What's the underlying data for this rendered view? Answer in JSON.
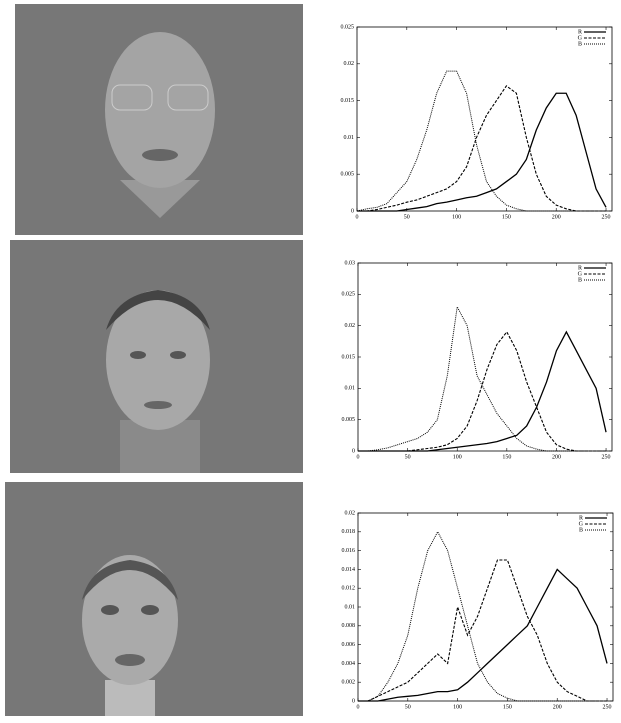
{
  "chart_data": [
    {
      "type": "line",
      "x": [
        0,
        10,
        20,
        30,
        40,
        50,
        60,
        70,
        80,
        90,
        100,
        110,
        120,
        130,
        140,
        150,
        160,
        170,
        180,
        190,
        200,
        210,
        220,
        230,
        240,
        250
      ],
      "xlim": [
        0,
        256
      ],
      "xticks": [
        0,
        50,
        100,
        150,
        200,
        250
      ],
      "ylim": [
        0,
        0.025
      ],
      "yticks": [
        0,
        0.005,
        0.01,
        0.015,
        0.02,
        0.025
      ],
      "legend": "top-right",
      "series": [
        {
          "name": "R",
          "color": "#000000",
          "dash": "solid",
          "values": [
            0,
            0,
            0,
            0,
            0,
            0.0002,
            0.0004,
            0.0006,
            0.001,
            0.0012,
            0.0015,
            0.0018,
            0.002,
            0.0025,
            0.003,
            0.004,
            0.005,
            0.007,
            0.011,
            0.014,
            0.016,
            0.016,
            0.013,
            0.008,
            0.003,
            0.0005
          ]
        },
        {
          "name": "G",
          "color": "#000000",
          "dash": "dashed",
          "values": [
            0,
            0,
            0.0002,
            0.0005,
            0.0008,
            0.0012,
            0.0015,
            0.002,
            0.0025,
            0.003,
            0.004,
            0.006,
            0.01,
            0.013,
            0.015,
            0.017,
            0.016,
            0.01,
            0.005,
            0.002,
            0.0008,
            0.0003,
            0,
            0,
            0,
            0
          ]
        },
        {
          "name": "B",
          "color": "#000000",
          "dash": "dotted",
          "values": [
            0,
            0.0003,
            0.0005,
            0.001,
            0.0025,
            0.004,
            0.007,
            0.011,
            0.016,
            0.019,
            0.019,
            0.016,
            0.009,
            0.004,
            0.002,
            0.0008,
            0.0003,
            0,
            0,
            0,
            0,
            0,
            0,
            0,
            0,
            0
          ]
        }
      ]
    },
    {
      "type": "line",
      "x": [
        0,
        10,
        20,
        30,
        40,
        50,
        60,
        70,
        80,
        90,
        100,
        110,
        120,
        130,
        140,
        150,
        160,
        170,
        180,
        190,
        200,
        210,
        220,
        230,
        240,
        250
      ],
      "xlim": [
        0,
        256
      ],
      "xticks": [
        0,
        50,
        100,
        150,
        200,
        250
      ],
      "ylim": [
        0,
        0.03
      ],
      "yticks": [
        0,
        0.005,
        0.01,
        0.015,
        0.02,
        0.025,
        0.03
      ],
      "legend": "top-right",
      "series": [
        {
          "name": "R",
          "color": "#000000",
          "dash": "solid",
          "values": [
            0,
            0,
            0,
            0,
            0,
            0,
            0,
            0,
            0.0002,
            0.0004,
            0.0006,
            0.0008,
            0.001,
            0.0012,
            0.0015,
            0.002,
            0.0025,
            0.004,
            0.007,
            0.011,
            0.016,
            0.019,
            0.016,
            0.013,
            0.01,
            0.003
          ]
        },
        {
          "name": "G",
          "color": "#000000",
          "dash": "dashed",
          "values": [
            0,
            0,
            0,
            0,
            0,
            0,
            0.0002,
            0.0004,
            0.0006,
            0.001,
            0.002,
            0.004,
            0.008,
            0.013,
            0.017,
            0.019,
            0.016,
            0.011,
            0.007,
            0.003,
            0.001,
            0.0003,
            0,
            0,
            0,
            0
          ]
        },
        {
          "name": "B",
          "color": "#000000",
          "dash": "dotted",
          "values": [
            0,
            0,
            0.0002,
            0.0005,
            0.001,
            0.0015,
            0.002,
            0.003,
            0.005,
            0.012,
            0.023,
            0.02,
            0.012,
            0.009,
            0.006,
            0.004,
            0.002,
            0.0008,
            0.0003,
            0,
            0,
            0,
            0,
            0,
            0,
            0
          ]
        }
      ]
    },
    {
      "type": "line",
      "x": [
        0,
        10,
        20,
        30,
        40,
        50,
        60,
        70,
        80,
        90,
        100,
        110,
        120,
        130,
        140,
        150,
        160,
        170,
        180,
        190,
        200,
        210,
        220,
        230,
        240,
        250
      ],
      "xlim": [
        0,
        256
      ],
      "xticks": [
        0,
        50,
        100,
        150,
        200,
        250
      ],
      "ylim": [
        0,
        0.02
      ],
      "yticks": [
        0,
        0.002,
        0.004,
        0.006,
        0.008,
        0.01,
        0.012,
        0.014,
        0.016,
        0.018,
        0.02
      ],
      "legend": "top-right",
      "series": [
        {
          "name": "R",
          "color": "#000000",
          "dash": "solid",
          "values": [
            0,
            0,
            0,
            0.0002,
            0.0004,
            0.0005,
            0.0006,
            0.0008,
            0.001,
            0.001,
            0.0012,
            0.002,
            0.003,
            0.004,
            0.005,
            0.006,
            0.007,
            0.008,
            0.01,
            0.012,
            0.014,
            0.013,
            0.012,
            0.01,
            0.008,
            0.004
          ]
        },
        {
          "name": "G",
          "color": "#000000",
          "dash": "dashed",
          "values": [
            0,
            0,
            0.0005,
            0.001,
            0.0015,
            0.002,
            0.003,
            0.004,
            0.005,
            0.004,
            0.01,
            0.007,
            0.009,
            0.012,
            0.015,
            0.015,
            0.012,
            0.009,
            0.007,
            0.004,
            0.002,
            0.001,
            0.0005,
            0,
            0,
            0
          ]
        },
        {
          "name": "B",
          "color": "#000000",
          "dash": "dotted",
          "values": [
            0,
            0,
            0.0005,
            0.002,
            0.004,
            0.007,
            0.012,
            0.016,
            0.018,
            0.016,
            0.012,
            0.008,
            0.004,
            0.002,
            0.0008,
            0.0003,
            0,
            0,
            0,
            0,
            0,
            0,
            0,
            0,
            0,
            0
          ]
        }
      ]
    }
  ]
}
